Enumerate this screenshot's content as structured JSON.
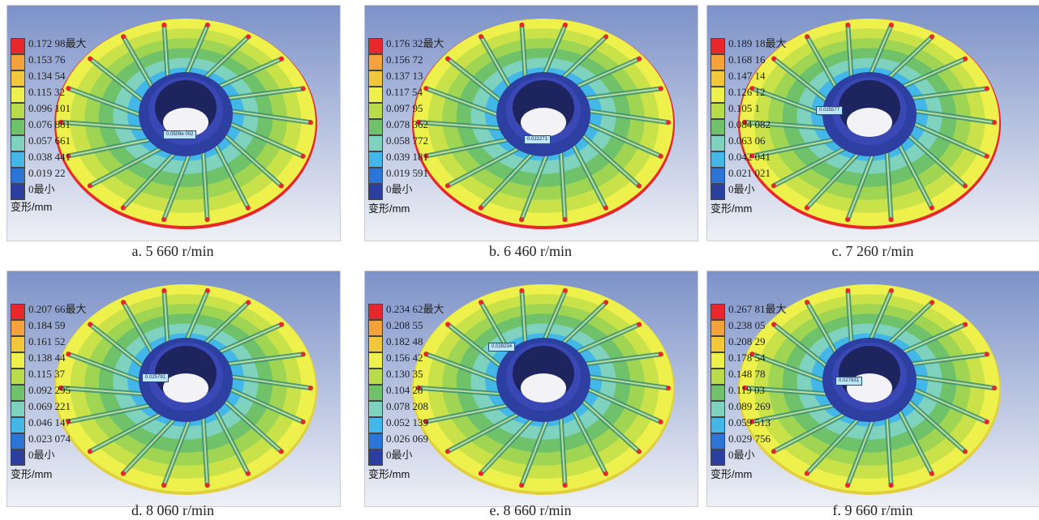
{
  "legend_colors": [
    "#e8262b",
    "#f6a23a",
    "#f2c73a",
    "#eef04b",
    "#b8dc4a",
    "#6fc26a",
    "#7fd2be",
    "#43b8e8",
    "#2a75d6",
    "#2a3f9e"
  ],
  "unit_label": "变形/mm",
  "panels": [
    {
      "caption": "a. 5 660 r/min",
      "tag": "0.0509e 002",
      "legend": [
        "0.172 98最大",
        "0.153 76",
        "0.134 54",
        "0.115 32",
        "0.096 101",
        "0.076 881",
        "0.057 661",
        "0.038 441",
        "0.019 22",
        "0最小"
      ]
    },
    {
      "caption": "b. 6 460 r/min",
      "tag": "0.022271",
      "legend": [
        "0.176 32最大",
        "0.156 72",
        "0.137 13",
        "0.117 54",
        "0.097 95",
        "0.078 362",
        "0.058 772",
        "0.039 181",
        "0.019 591",
        "0最小"
      ]
    },
    {
      "caption": "c. 7 260 r/min",
      "tag": "0.025577",
      "legend": [
        "0.189 18最大",
        "0.168 16",
        "0.147 14",
        "0.126 12",
        "0.105 1",
        "0.084 082",
        "0.063 06",
        "0.042 041",
        "0.021 021",
        "0最小"
      ]
    },
    {
      "caption": "d. 8 060 r/min",
      "tag": "0.025791",
      "legend": [
        "0.207 66最大",
        "0.184 59",
        "0.161 52",
        "0.138 44",
        "0.115 37",
        "0.092 295",
        "0.069 221",
        "0.046 147",
        "0.023 074",
        "0最小"
      ]
    },
    {
      "caption": "e. 8 660 r/min",
      "tag": "0.028234",
      "legend": [
        "0.234 62最大",
        "0.208 55",
        "0.182 48",
        "0.156 42",
        "0.130 35",
        "0.104 28",
        "0.078 208",
        "0.052 139",
        "0.026 069",
        "0最小"
      ]
    },
    {
      "caption": "f. 9 660 r/min",
      "tag": "0.027831",
      "legend": [
        "0.267 81最大",
        "0.238 05",
        "0.208 29",
        "0.178 54",
        "0.148 78",
        "0.119 03",
        "0.089 269",
        "0.059 513",
        "0.029 756",
        "0最小"
      ]
    }
  ]
}
